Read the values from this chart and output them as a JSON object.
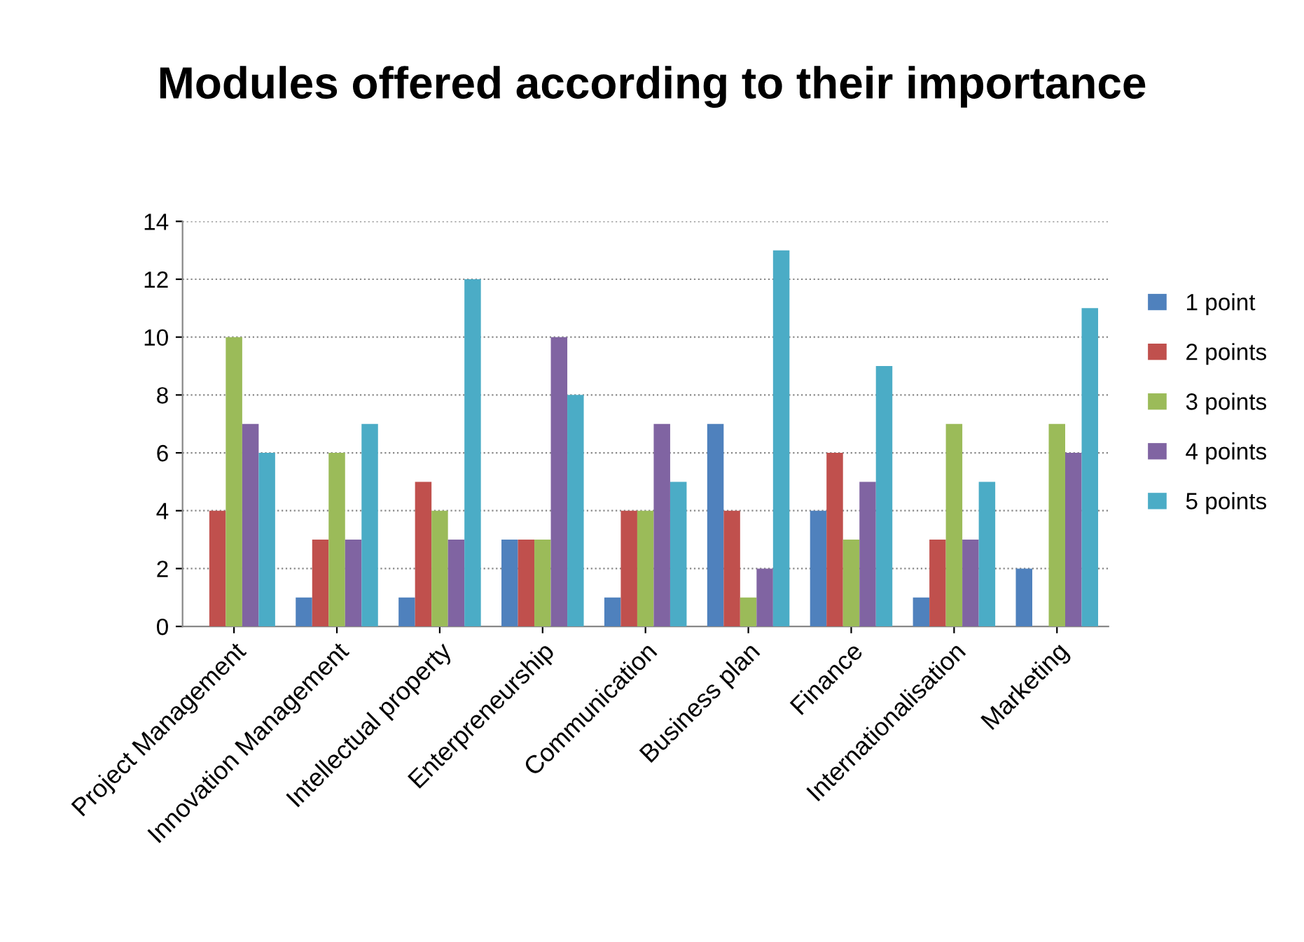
{
  "chart_data": {
    "type": "bar",
    "title": "Modules offered according to their importance",
    "categories": [
      "Project Management",
      "Innovation Management",
      "Intellectual property",
      "Enterpreneurship",
      "Communication",
      "Business plan",
      "Finance",
      "Internationalisation",
      "Marketing"
    ],
    "series": [
      {
        "name": "1 point",
        "color": "#4f81bd",
        "values": [
          0,
          1,
          1,
          3,
          1,
          7,
          4,
          1,
          2
        ]
      },
      {
        "name": "2 points",
        "color": "#c0504d",
        "values": [
          4,
          3,
          5,
          3,
          4,
          4,
          6,
          3,
          0
        ]
      },
      {
        "name": "3 points",
        "color": "#9bbb59",
        "values": [
          10,
          6,
          4,
          3,
          4,
          1,
          3,
          7,
          7
        ]
      },
      {
        "name": "4 points",
        "color": "#8064a2",
        "values": [
          7,
          3,
          3,
          10,
          7,
          2,
          5,
          3,
          6
        ]
      },
      {
        "name": "5 points",
        "color": "#4bacc6",
        "values": [
          6,
          7,
          12,
          8,
          5,
          13,
          9,
          5,
          11
        ]
      }
    ],
    "ylim": [
      0,
      14
    ],
    "yticks": [
      0,
      2,
      4,
      6,
      8,
      10,
      12,
      14
    ],
    "grid": "y",
    "legend": "right"
  }
}
